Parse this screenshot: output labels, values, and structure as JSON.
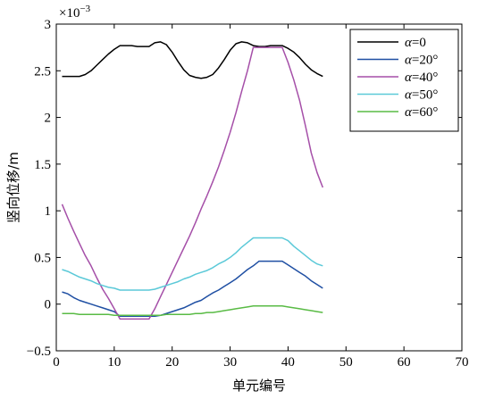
{
  "chart_data": {
    "type": "line",
    "xlabel": "单元编号",
    "ylabel": "竖向位移/m",
    "y_multiplier": "×10",
    "y_multiplier_exp": "−3",
    "xlim": [
      0,
      70
    ],
    "ylim": [
      -0.5,
      3
    ],
    "xticks": [
      "0",
      "10",
      "20",
      "30",
      "40",
      "50",
      "60",
      "70"
    ],
    "xtick_values": [
      0,
      10,
      20,
      30,
      40,
      50,
      60,
      70
    ],
    "yticks": [
      "−0.5",
      "0",
      "0.5",
      "1",
      "1.5",
      "2",
      "2.5",
      "3"
    ],
    "ytick_values": [
      -0.5,
      0,
      0.5,
      1,
      1.5,
      2,
      2.5,
      3
    ],
    "grid": false,
    "legend_position": "top-right",
    "series": [
      {
        "name": "α=0",
        "name_var": "α",
        "name_rest": "=0",
        "color": "#000000",
        "x": [
          1,
          2,
          3,
          4,
          5,
          6,
          7,
          8,
          9,
          10,
          11,
          12,
          13,
          14,
          15,
          16,
          17,
          18,
          19,
          20,
          21,
          22,
          23,
          24,
          25,
          26,
          27,
          28,
          29,
          30,
          31,
          32,
          33,
          34,
          35,
          36,
          37,
          38,
          39,
          40,
          41,
          42,
          43,
          44,
          45,
          46
        ],
        "y": [
          2.44,
          2.44,
          2.44,
          2.44,
          2.46,
          2.5,
          2.56,
          2.62,
          2.68,
          2.73,
          2.77,
          2.77,
          2.77,
          2.76,
          2.76,
          2.76,
          2.8,
          2.81,
          2.78,
          2.7,
          2.6,
          2.51,
          2.45,
          2.43,
          2.42,
          2.43,
          2.46,
          2.53,
          2.62,
          2.72,
          2.79,
          2.81,
          2.8,
          2.77,
          2.76,
          2.76,
          2.77,
          2.77,
          2.77,
          2.74,
          2.7,
          2.64,
          2.57,
          2.51,
          2.47,
          2.44
        ]
      },
      {
        "name": "α=20°",
        "name_var": "α",
        "name_rest": "=20°",
        "color": "#1f4fa3",
        "x": [
          1,
          2,
          3,
          4,
          5,
          6,
          7,
          8,
          9,
          10,
          11,
          12,
          13,
          14,
          15,
          16,
          17,
          18,
          19,
          20,
          21,
          22,
          23,
          24,
          25,
          26,
          27,
          28,
          29,
          30,
          31,
          32,
          33,
          34,
          35,
          36,
          37,
          38,
          39,
          40,
          41,
          42,
          43,
          44,
          45,
          46
        ],
        "y": [
          0.13,
          0.11,
          0.07,
          0.04,
          0.02,
          0.0,
          -0.02,
          -0.04,
          -0.06,
          -0.08,
          -0.13,
          -0.13,
          -0.13,
          -0.13,
          -0.13,
          -0.13,
          -0.13,
          -0.12,
          -0.1,
          -0.08,
          -0.06,
          -0.04,
          -0.01,
          0.02,
          0.04,
          0.08,
          0.12,
          0.15,
          0.19,
          0.23,
          0.27,
          0.32,
          0.37,
          0.41,
          0.46,
          0.46,
          0.46,
          0.46,
          0.46,
          0.42,
          0.38,
          0.34,
          0.3,
          0.25,
          0.21,
          0.17
        ]
      },
      {
        "name": "α=40°",
        "name_var": "α",
        "name_rest": "=40°",
        "color": "#a54fa8",
        "x": [
          1,
          2,
          3,
          4,
          5,
          6,
          7,
          8,
          9,
          10,
          11,
          12,
          13,
          14,
          15,
          16,
          17,
          18,
          19,
          20,
          21,
          22,
          23,
          24,
          25,
          26,
          27,
          28,
          29,
          30,
          31,
          32,
          33,
          34,
          35,
          36,
          37,
          38,
          39,
          40,
          41,
          42,
          43,
          44,
          45,
          46
        ],
        "y": [
          1.07,
          0.92,
          0.78,
          0.65,
          0.52,
          0.41,
          0.28,
          0.16,
          0.06,
          -0.05,
          -0.16,
          -0.16,
          -0.16,
          -0.16,
          -0.16,
          -0.16,
          -0.05,
          0.08,
          0.21,
          0.34,
          0.47,
          0.6,
          0.73,
          0.87,
          1.02,
          1.16,
          1.31,
          1.47,
          1.65,
          1.84,
          2.05,
          2.28,
          2.5,
          2.75,
          2.75,
          2.75,
          2.75,
          2.75,
          2.75,
          2.59,
          2.4,
          2.18,
          1.91,
          1.62,
          1.41,
          1.25
        ]
      },
      {
        "name": "α=50°",
        "name_var": "α",
        "name_rest": "=50°",
        "color": "#5bc9d8",
        "x": [
          1,
          2,
          3,
          4,
          5,
          6,
          7,
          8,
          9,
          10,
          11,
          12,
          13,
          14,
          15,
          16,
          17,
          18,
          19,
          20,
          21,
          22,
          23,
          24,
          25,
          26,
          27,
          28,
          29,
          30,
          31,
          32,
          33,
          34,
          35,
          36,
          37,
          38,
          39,
          40,
          41,
          42,
          43,
          44,
          45,
          46
        ],
        "y": [
          0.37,
          0.35,
          0.32,
          0.29,
          0.27,
          0.25,
          0.22,
          0.2,
          0.18,
          0.17,
          0.15,
          0.15,
          0.15,
          0.15,
          0.15,
          0.15,
          0.16,
          0.18,
          0.2,
          0.22,
          0.24,
          0.27,
          0.29,
          0.32,
          0.34,
          0.36,
          0.39,
          0.43,
          0.46,
          0.5,
          0.55,
          0.61,
          0.66,
          0.71,
          0.71,
          0.71,
          0.71,
          0.71,
          0.71,
          0.68,
          0.62,
          0.57,
          0.52,
          0.47,
          0.43,
          0.41
        ]
      },
      {
        "name": "α=60°",
        "name_var": "α",
        "name_rest": "=60°",
        "color": "#59bb45",
        "x": [
          1,
          2,
          3,
          4,
          5,
          6,
          7,
          8,
          9,
          10,
          11,
          12,
          13,
          14,
          15,
          16,
          17,
          18,
          19,
          20,
          21,
          22,
          23,
          24,
          25,
          26,
          27,
          28,
          29,
          30,
          31,
          32,
          33,
          34,
          35,
          36,
          37,
          38,
          39,
          40,
          41,
          42,
          43,
          44,
          45,
          46
        ],
        "y": [
          -0.1,
          -0.1,
          -0.1,
          -0.11,
          -0.11,
          -0.11,
          -0.11,
          -0.11,
          -0.11,
          -0.12,
          -0.12,
          -0.12,
          -0.12,
          -0.12,
          -0.12,
          -0.12,
          -0.12,
          -0.12,
          -0.11,
          -0.11,
          -0.11,
          -0.11,
          -0.11,
          -0.1,
          -0.1,
          -0.09,
          -0.09,
          -0.08,
          -0.07,
          -0.06,
          -0.05,
          -0.04,
          -0.03,
          -0.02,
          -0.02,
          -0.02,
          -0.02,
          -0.02,
          -0.02,
          -0.03,
          -0.04,
          -0.05,
          -0.06,
          -0.07,
          -0.08,
          -0.09
        ]
      }
    ]
  }
}
